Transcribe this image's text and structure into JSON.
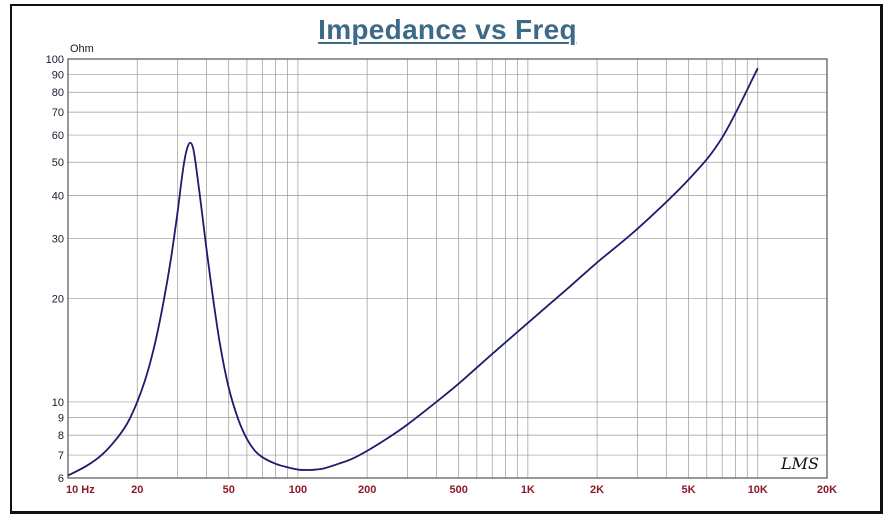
{
  "chart_data": {
    "type": "line",
    "title": "Impedance vs Freq",
    "ylabel": "Ohm",
    "x_scale": "log",
    "y_scale": "log",
    "xlim": [
      10,
      20000
    ],
    "ylim": [
      6,
      100
    ],
    "grid": true,
    "x_ticks": [
      "10 Hz",
      "20",
      "50",
      "100",
      "200",
      "500",
      "1K",
      "2K",
      "5K",
      "10K",
      "20K"
    ],
    "x_tick_values": [
      10,
      20,
      50,
      100,
      200,
      500,
      1000,
      2000,
      5000,
      10000,
      20000
    ],
    "y_ticks": [
      "6",
      "7",
      "8",
      "9",
      "10",
      "20",
      "30",
      "40",
      "50",
      "60",
      "70",
      "80",
      "90",
      "100"
    ],
    "y_tick_values": [
      6,
      7,
      8,
      9,
      10,
      20,
      30,
      40,
      50,
      60,
      70,
      80,
      90,
      100
    ],
    "series": [
      {
        "color": "#1c1c6e",
        "x": [
          10,
          12,
          14,
          16,
          18,
          20,
          22,
          24,
          26,
          28,
          30,
          31,
          32,
          33,
          34,
          35,
          36,
          38,
          40,
          43,
          46,
          50,
          55,
          60,
          65,
          70,
          80,
          90,
          100,
          110,
          120,
          130,
          150,
          170,
          200,
          250,
          300,
          400,
          500,
          700,
          1000,
          1500,
          2000,
          3000,
          5000,
          7000,
          10000
        ],
        "y": [
          6.1,
          6.5,
          7.0,
          7.7,
          8.6,
          10.0,
          12.0,
          15.0,
          19.5,
          26.0,
          36.0,
          43.0,
          50.0,
          55.0,
          57.0,
          55.0,
          49.0,
          37.0,
          28.0,
          19.5,
          14.5,
          11.0,
          8.9,
          7.8,
          7.2,
          6.9,
          6.6,
          6.45,
          6.35,
          6.33,
          6.35,
          6.4,
          6.6,
          6.8,
          7.2,
          7.9,
          8.6,
          10.0,
          11.3,
          13.8,
          17.0,
          21.5,
          25.5,
          32.0,
          44.5,
          59.0,
          94.0
        ]
      }
    ],
    "annotation": "LMS"
  }
}
